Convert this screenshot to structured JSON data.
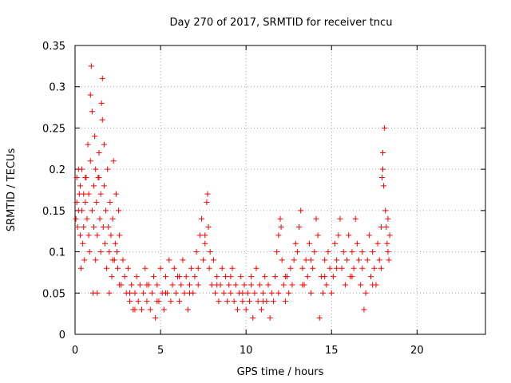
{
  "chart_data": {
    "type": "scatter",
    "title": "Day 270 of 2017, SRMTID for receiver tncu",
    "xlabel": "GPS time / hours",
    "ylabel": "SRMTID / TECUs",
    "xlim": [
      0,
      24
    ],
    "ylim": [
      0,
      0.35
    ],
    "xticks": [
      0,
      5,
      10,
      15,
      20
    ],
    "xtick_labels": [
      "0",
      "5",
      "10",
      "15",
      "20"
    ],
    "yticks": [
      0,
      0.05,
      0.1,
      0.15,
      0.2,
      0.25,
      0.3,
      0.35
    ],
    "ytick_labels": [
      "0",
      "0.05",
      "0.1",
      "0.15",
      "0.2",
      "0.25",
      "0.3",
      "0.35"
    ],
    "grid": true,
    "marker": "+",
    "color": "#ff0000",
    "series": [
      {
        "points": [
          [
            0.05,
            0.14
          ],
          [
            0.1,
            0.16
          ],
          [
            0.1,
            0.19
          ],
          [
            0.15,
            0.13
          ],
          [
            0.2,
            0.2
          ],
          [
            0.2,
            0.15
          ],
          [
            0.25,
            0.17
          ],
          [
            0.3,
            0.12
          ],
          [
            0.3,
            0.18
          ],
          [
            0.35,
            0.08
          ],
          [
            0.4,
            0.15
          ],
          [
            0.4,
            0.2
          ],
          [
            0.45,
            0.11
          ],
          [
            0.5,
            0.17
          ],
          [
            0.5,
            0.13
          ],
          [
            0.55,
            0.09
          ],
          [
            0.6,
            0.16
          ],
          [
            0.65,
            0.19
          ],
          [
            0.7,
            0.14
          ],
          [
            0.75,
            0.23
          ],
          [
            0.8,
            0.12
          ],
          [
            0.8,
            0.17
          ],
          [
            0.85,
            0.1
          ],
          [
            0.9,
            0.21
          ],
          [
            0.9,
            0.29
          ],
          [
            0.95,
            0.325
          ],
          [
            1.0,
            0.15
          ],
          [
            1.0,
            0.27
          ],
          [
            1.05,
            0.05
          ],
          [
            1.1,
            0.18
          ],
          [
            1.1,
            0.13
          ],
          [
            1.15,
            0.24
          ],
          [
            1.2,
            0.09
          ],
          [
            1.2,
            0.2
          ],
          [
            1.25,
            0.16
          ],
          [
            1.3,
            0.05
          ],
          [
            1.3,
            0.12
          ],
          [
            1.35,
            0.19
          ],
          [
            1.4,
            0.22
          ],
          [
            1.45,
            0.14
          ],
          [
            1.5,
            0.1
          ],
          [
            1.5,
            0.17
          ],
          [
            1.55,
            0.28
          ],
          [
            1.6,
            0.31
          ],
          [
            1.6,
            0.26
          ],
          [
            1.65,
            0.13
          ],
          [
            1.7,
            0.23
          ],
          [
            1.7,
            0.18
          ],
          [
            1.75,
            0.11
          ],
          [
            1.8,
            0.15
          ],
          [
            1.85,
            0.08
          ],
          [
            1.9,
            0.2
          ],
          [
            1.95,
            0.13
          ],
          [
            2.0,
            0.05
          ],
          [
            2.0,
            0.1
          ],
          [
            2.05,
            0.16
          ],
          [
            2.1,
            0.12
          ],
          [
            2.15,
            0.07
          ],
          [
            2.2,
            0.14
          ],
          [
            2.25,
            0.21
          ],
          [
            2.3,
            0.09
          ],
          [
            2.35,
            0.11
          ],
          [
            2.4,
            0.17
          ],
          [
            2.45,
            0.1
          ],
          [
            2.5,
            0.08
          ],
          [
            2.55,
            0.15
          ],
          [
            2.6,
            0.12
          ],
          [
            2.7,
            0.06
          ],
          [
            2.8,
            0.09
          ],
          [
            2.9,
            0.07
          ],
          [
            3.0,
            0.05
          ],
          [
            3.1,
            0.08
          ],
          [
            3.2,
            0.04
          ],
          [
            3.3,
            0.06
          ],
          [
            3.4,
            0.03
          ],
          [
            3.5,
            0.05
          ],
          [
            3.6,
            0.07
          ],
          [
            3.7,
            0.04
          ],
          [
            3.8,
            0.06
          ],
          [
            3.9,
            0.03
          ],
          [
            4.0,
            0.05
          ],
          [
            4.1,
            0.08
          ],
          [
            4.2,
            0.04
          ],
          [
            4.3,
            0.06
          ],
          [
            4.4,
            0.03
          ],
          [
            4.5,
            0.05
          ],
          [
            4.6,
            0.07
          ],
          [
            4.7,
            0.02
          ],
          [
            4.8,
            0.06
          ],
          [
            4.9,
            0.04
          ],
          [
            5.0,
            0.08
          ],
          [
            5.1,
            0.05
          ],
          [
            5.2,
            0.03
          ],
          [
            5.3,
            0.07
          ],
          [
            5.4,
            0.05
          ],
          [
            5.5,
            0.09
          ],
          [
            5.6,
            0.04
          ],
          [
            5.7,
            0.06
          ],
          [
            5.8,
            0.08
          ],
          [
            5.9,
            0.05
          ],
          [
            6.0,
            0.07
          ],
          [
            6.1,
            0.04
          ],
          [
            6.2,
            0.06
          ],
          [
            6.3,
            0.09
          ],
          [
            6.4,
            0.05
          ],
          [
            6.5,
            0.07
          ],
          [
            6.6,
            0.03
          ],
          [
            6.7,
            0.06
          ],
          [
            6.8,
            0.08
          ],
          [
            6.9,
            0.05
          ],
          [
            7.0,
            0.07
          ],
          [
            7.1,
            0.1
          ],
          [
            7.2,
            0.06
          ],
          [
            7.3,
            0.12
          ],
          [
            7.4,
            0.14
          ],
          [
            7.5,
            0.09
          ],
          [
            7.6,
            0.11
          ],
          [
            7.7,
            0.16
          ],
          [
            7.75,
            0.17
          ],
          [
            7.8,
            0.13
          ],
          [
            7.85,
            0.08
          ],
          [
            7.9,
            0.1
          ],
          [
            8.0,
            0.06
          ],
          [
            8.1,
            0.09
          ],
          [
            8.2,
            0.05
          ],
          [
            8.3,
            0.07
          ],
          [
            8.4,
            0.04
          ],
          [
            8.5,
            0.06
          ],
          [
            8.6,
            0.08
          ],
          [
            8.7,
            0.05
          ],
          [
            8.8,
            0.07
          ],
          [
            8.9,
            0.04
          ],
          [
            9.0,
            0.06
          ],
          [
            9.1,
            0.05
          ],
          [
            9.2,
            0.08
          ],
          [
            9.3,
            0.04
          ],
          [
            9.4,
            0.06
          ],
          [
            9.5,
            0.03
          ],
          [
            9.6,
            0.05
          ],
          [
            9.7,
            0.07
          ],
          [
            9.8,
            0.04
          ],
          [
            9.9,
            0.06
          ],
          [
            10.0,
            0.03
          ],
          [
            10.1,
            0.05
          ],
          [
            10.2,
            0.04
          ],
          [
            10.3,
            0.07
          ],
          [
            10.4,
            0.02
          ],
          [
            10.5,
            0.05
          ],
          [
            10.6,
            0.08
          ],
          [
            10.7,
            0.04
          ],
          [
            10.8,
            0.06
          ],
          [
            10.9,
            0.03
          ],
          [
            11.0,
            0.05
          ],
          [
            11.1,
            0.07
          ],
          [
            11.2,
            0.04
          ],
          [
            11.3,
            0.06
          ],
          [
            11.4,
            0.02
          ],
          [
            11.5,
            0.05
          ],
          [
            11.6,
            0.04
          ],
          [
            11.7,
            0.07
          ],
          [
            11.8,
            0.1
          ],
          [
            11.9,
            0.12
          ],
          [
            12.0,
            0.14
          ],
          [
            12.05,
            0.13
          ],
          [
            12.1,
            0.09
          ],
          [
            12.2,
            0.06
          ],
          [
            12.3,
            0.04
          ],
          [
            12.4,
            0.07
          ],
          [
            12.5,
            0.05
          ],
          [
            12.6,
            0.08
          ],
          [
            12.7,
            0.06
          ],
          [
            12.8,
            0.09
          ],
          [
            12.9,
            0.11
          ],
          [
            13.0,
            0.1
          ],
          [
            13.1,
            0.13
          ],
          [
            13.2,
            0.15
          ],
          [
            13.3,
            0.08
          ],
          [
            13.4,
            0.06
          ],
          [
            13.5,
            0.09
          ],
          [
            13.6,
            0.07
          ],
          [
            13.7,
            0.11
          ],
          [
            13.8,
            0.05
          ],
          [
            13.9,
            0.08
          ],
          [
            14.0,
            0.1
          ],
          [
            14.1,
            0.14
          ],
          [
            14.2,
            0.12
          ],
          [
            14.3,
            0.02
          ],
          [
            14.4,
            0.07
          ],
          [
            14.5,
            0.05
          ],
          [
            14.6,
            0.09
          ],
          [
            14.7,
            0.06
          ],
          [
            14.8,
            0.1
          ],
          [
            14.9,
            0.08
          ],
          [
            15.0,
            0.05
          ],
          [
            15.1,
            0.07
          ],
          [
            15.2,
            0.11
          ],
          [
            15.3,
            0.09
          ],
          [
            15.4,
            0.12
          ],
          [
            15.5,
            0.14
          ],
          [
            15.6,
            0.08
          ],
          [
            15.7,
            0.1
          ],
          [
            15.8,
            0.06
          ],
          [
            15.9,
            0.09
          ],
          [
            16.0,
            0.12
          ],
          [
            16.1,
            0.07
          ],
          [
            16.2,
            0.1
          ],
          [
            16.3,
            0.08
          ],
          [
            16.4,
            0.14
          ],
          [
            16.5,
            0.11
          ],
          [
            16.6,
            0.09
          ],
          [
            16.7,
            0.06
          ],
          [
            16.8,
            0.08
          ],
          [
            16.9,
            0.03
          ],
          [
            17.0,
            0.05
          ],
          [
            17.1,
            0.09
          ],
          [
            17.2,
            0.12
          ],
          [
            17.3,
            0.07
          ],
          [
            17.4,
            0.1
          ],
          [
            17.5,
            0.08
          ],
          [
            17.6,
            0.06
          ],
          [
            17.7,
            0.11
          ],
          [
            17.8,
            0.09
          ],
          [
            17.9,
            0.13
          ],
          [
            17.95,
            0.19
          ],
          [
            18.0,
            0.2
          ],
          [
            18.0,
            0.22
          ],
          [
            18.05,
            0.18
          ],
          [
            18.1,
            0.25
          ],
          [
            18.15,
            0.15
          ],
          [
            18.2,
            0.13
          ],
          [
            18.25,
            0.11
          ],
          [
            18.3,
            0.1
          ],
          [
            18.3,
            0.14
          ],
          [
            18.35,
            0.09
          ],
          [
            18.4,
            0.12
          ],
          [
            0.6,
            0.19
          ],
          [
            1.4,
            0.19
          ],
          [
            2.2,
            0.09
          ],
          [
            2.6,
            0.06
          ],
          [
            3.2,
            0.05
          ],
          [
            3.5,
            0.03
          ],
          [
            4.2,
            0.06
          ],
          [
            4.8,
            0.04
          ],
          [
            5.3,
            0.05
          ],
          [
            6.1,
            0.07
          ],
          [
            6.7,
            0.05
          ],
          [
            7.2,
            0.08
          ],
          [
            7.6,
            0.12
          ],
          [
            8.3,
            0.06
          ],
          [
            9.1,
            0.07
          ],
          [
            9.8,
            0.05
          ],
          [
            10.3,
            0.06
          ],
          [
            11.0,
            0.04
          ],
          [
            11.9,
            0.05
          ],
          [
            12.3,
            0.07
          ],
          [
            13.3,
            0.06
          ],
          [
            13.8,
            0.09
          ],
          [
            14.6,
            0.07
          ],
          [
            15.3,
            0.08
          ],
          [
            16.2,
            0.07
          ],
          [
            16.8,
            0.1
          ],
          [
            17.4,
            0.06
          ],
          [
            17.9,
            0.08
          ]
        ]
      }
    ]
  }
}
